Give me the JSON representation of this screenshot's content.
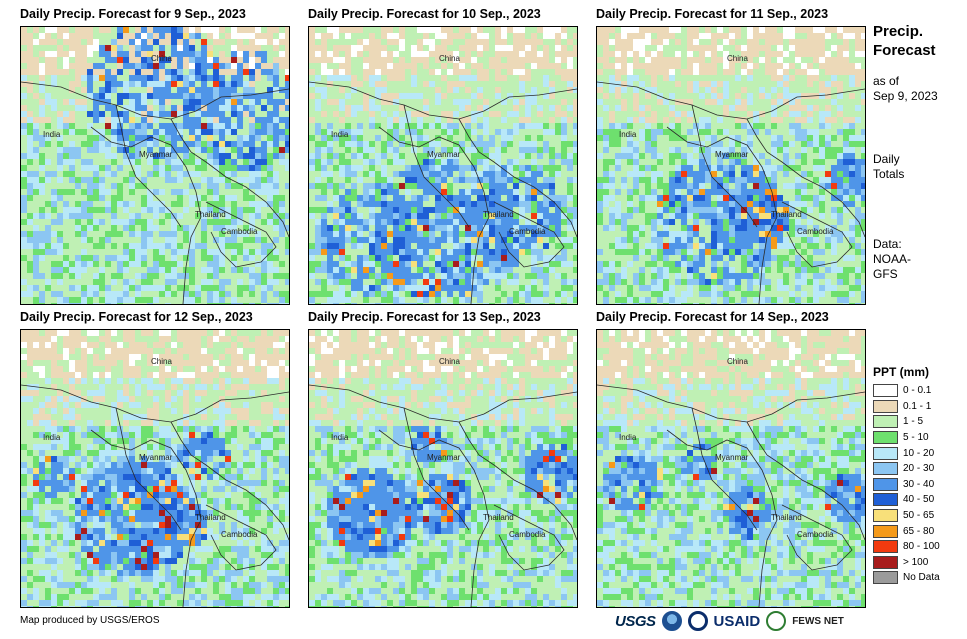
{
  "panels": [
    {
      "title": "Daily Precip. Forecast for 9 Sep., 2023"
    },
    {
      "title": "Daily Precip. Forecast for 10 Sep., 2023"
    },
    {
      "title": "Daily Precip. Forecast for 11 Sep., 2023"
    },
    {
      "title": "Daily Precip. Forecast for 12 Sep., 2023"
    },
    {
      "title": "Daily Precip. Forecast for 13 Sep., 2023"
    },
    {
      "title": "Daily Precip. Forecast for 14 Sep., 2023"
    }
  ],
  "map_labels": {
    "china": "China",
    "india": "India",
    "myanmar": "Myanmar",
    "thailand": "Thailand",
    "cambodia": "Cambodia"
  },
  "side": {
    "title_line1": "Precip.",
    "title_line2": "Forecast",
    "asof_line1": "as of",
    "asof_line2": "Sep 9, 2023",
    "totals_line1": "Daily",
    "totals_line2": "Totals",
    "data_line1": "Data:",
    "data_line2": "NOAA-",
    "data_line3": "GFS"
  },
  "legend": {
    "title": "PPT (mm)",
    "classes": [
      {
        "label": "0 - 0.1",
        "color": "#ffffff"
      },
      {
        "label": "0.1 - 1",
        "color": "#ecd9b8"
      },
      {
        "label": "1 - 5",
        "color": "#bff0b4"
      },
      {
        "label": "5 - 10",
        "color": "#6ee06e"
      },
      {
        "label": "10 - 20",
        "color": "#b8e8f8"
      },
      {
        "label": "20 - 30",
        "color": "#8cc6f2"
      },
      {
        "label": "30 - 40",
        "color": "#4f95e8"
      },
      {
        "label": "40 - 50",
        "color": "#1f5fd6"
      },
      {
        "label": "50 - 65",
        "color": "#f8e07a"
      },
      {
        "label": "65 - 80",
        "color": "#f59a1a"
      },
      {
        "label": "80 - 100",
        "color": "#f23a0f"
      },
      {
        "label": "> 100",
        "color": "#a81c1c"
      },
      {
        "label": "No Data",
        "color": "#9b9b9b"
      }
    ]
  },
  "credit": "Map produced by USGS/EROS",
  "logos": {
    "usgs": "USGS",
    "usaid": "USAID",
    "fews": "FEWS NET"
  }
}
